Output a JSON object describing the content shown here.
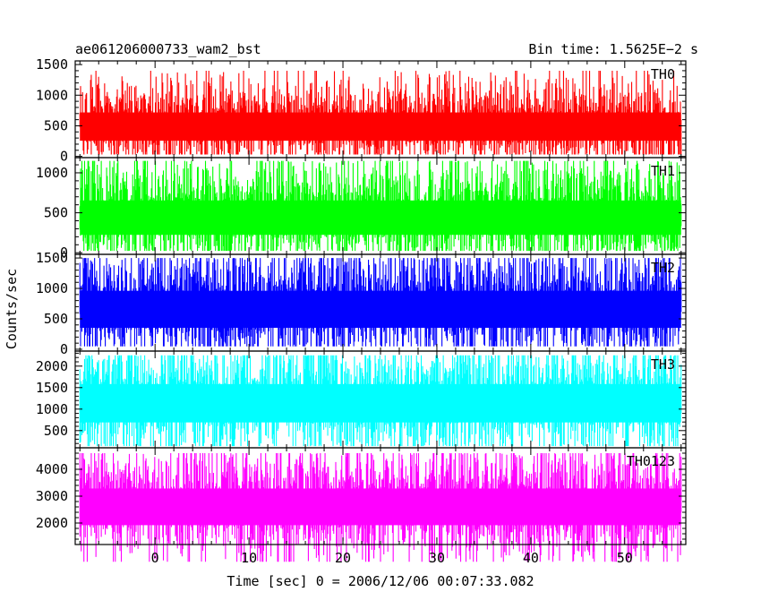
{
  "header": {
    "title": "ae061206000733_wam2_bst",
    "bin_time": "Bin time: 1.5625E−2 s"
  },
  "chart_data": {
    "type": "line",
    "ylabel": "Counts/sec",
    "xlabel": "Time [sec] 0 = 2006/12/06 00:07:33.082",
    "xlim": [
      -8.5,
      56.5
    ],
    "x_data_range": [
      -8,
      56
    ],
    "xticks": [
      0,
      10,
      20,
      30,
      40,
      50
    ],
    "panels": [
      {
        "name": "TH0",
        "color": "#ff0000",
        "ylim": [
          -20,
          1560
        ],
        "yticks": [
          0,
          500,
          1000,
          1500
        ],
        "mean": 520,
        "base": 80,
        "peak": 1400
      },
      {
        "name": "TH1",
        "color": "#00ff00",
        "ylim": [
          -20,
          1190
        ],
        "yticks": [
          0,
          500,
          1000
        ],
        "mean": 470,
        "base": 60,
        "peak": 1150
      },
      {
        "name": "TH2",
        "color": "#0000ff",
        "ylim": [
          -30,
          1560
        ],
        "yticks": [
          0,
          500,
          1000,
          1500
        ],
        "mean": 700,
        "base": 120,
        "peak": 1500
      },
      {
        "name": "TH3",
        "color": "#00ffff",
        "ylim": [
          100,
          2350
        ],
        "yticks": [
          500,
          1000,
          1500,
          2000
        ],
        "mean": 1200,
        "base": 350,
        "peak": 2250
      },
      {
        "name": "TH0123",
        "color": "#ff00ff",
        "ylim": [
          1200,
          4800
        ],
        "yticks": [
          2000,
          3000,
          4000
        ],
        "mean": 2700,
        "base": 1400,
        "peak": 4600
      }
    ]
  }
}
